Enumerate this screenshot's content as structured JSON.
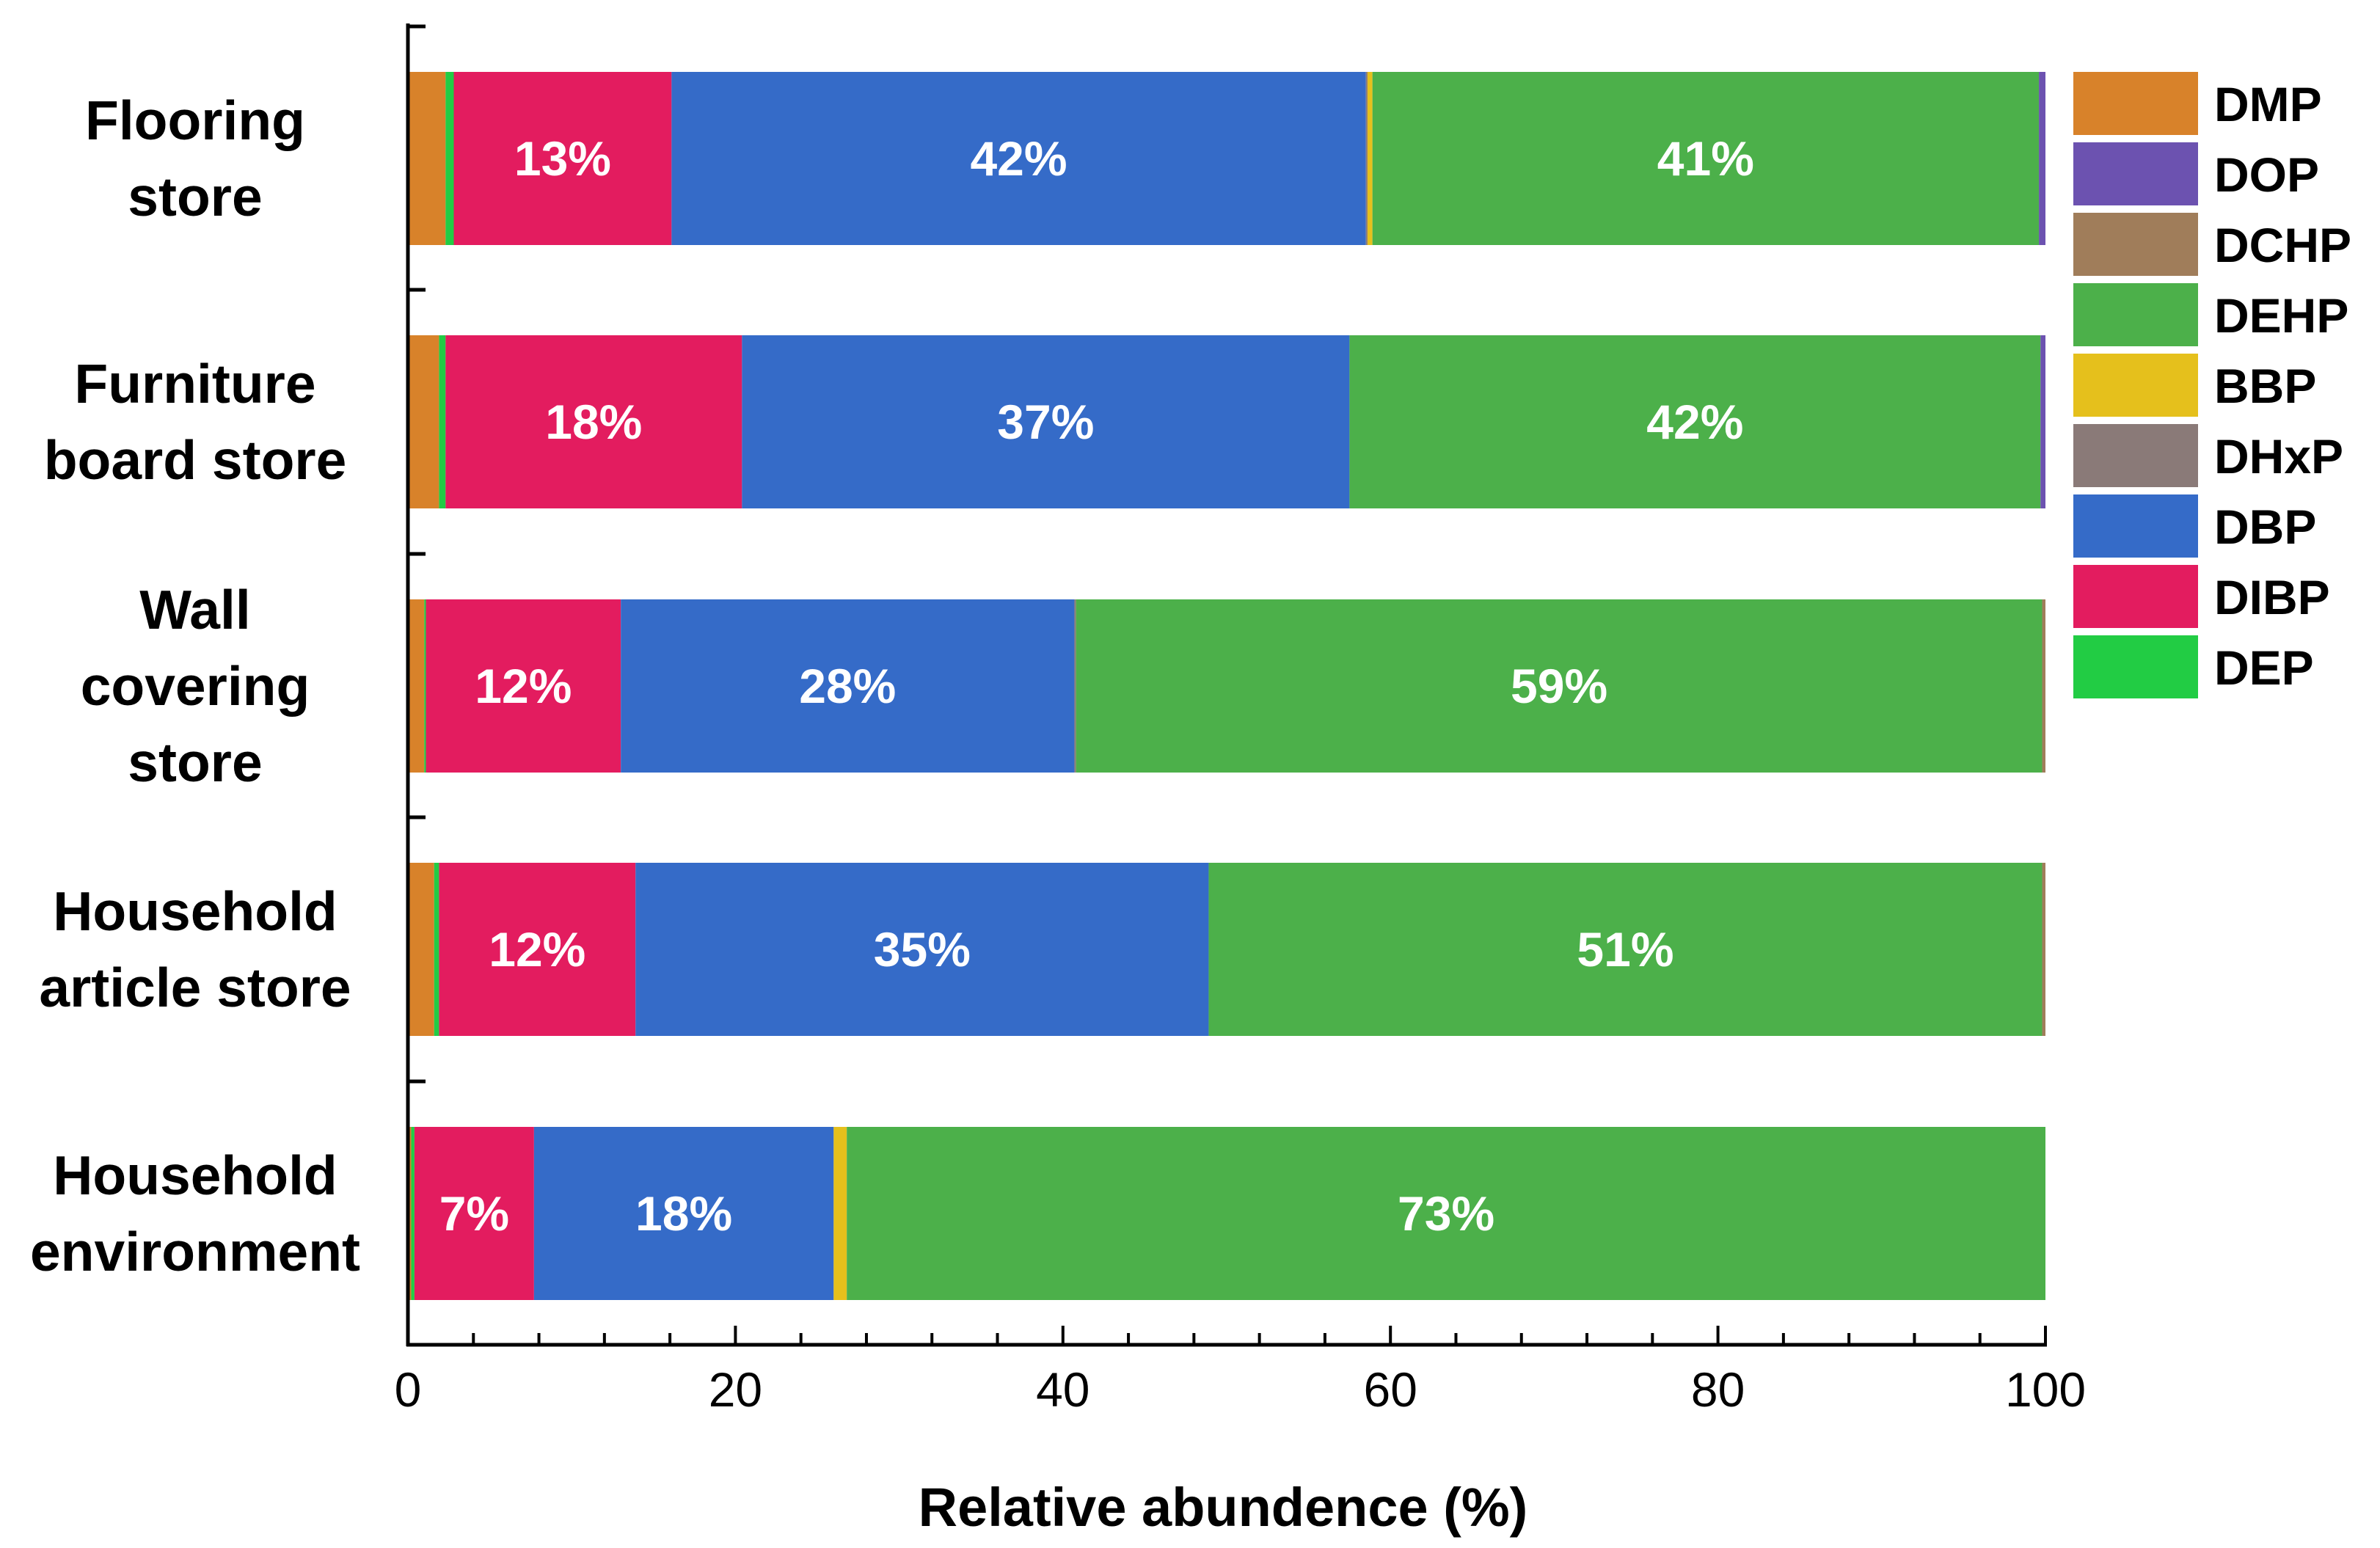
{
  "chart_data": {
    "type": "bar",
    "orientation": "horizontal",
    "stacked": true,
    "xlabel": "Relative abundence (%)",
    "xlim": [
      0,
      100
    ],
    "xticks": [
      0,
      20,
      40,
      60,
      80,
      100
    ],
    "x_minor_step": 4,
    "legend_position": "right",
    "categories": [
      [
        "Flooring",
        "store"
      ],
      [
        "Furniture",
        "board store"
      ],
      [
        "Wall",
        "covering",
        "store"
      ],
      [
        "Household",
        "article store"
      ],
      [
        "Household",
        "environment"
      ]
    ],
    "series": [
      {
        "name": "DMP",
        "color": "#d8822a",
        "values": [
          2.3,
          1.9,
          1.0,
          1.6,
          0.2
        ]
      },
      {
        "name": "DEP",
        "color": "#22cc44",
        "values": [
          0.5,
          0.4,
          0.1,
          0.3,
          0.2
        ]
      },
      {
        "name": "DIBP",
        "color": "#e31c5f",
        "values": [
          13.3,
          18.1,
          11.9,
          12.0,
          7.3
        ]
      },
      {
        "name": "DBP",
        "color": "#356bc8",
        "values": [
          42.4,
          37.1,
          27.7,
          35.0,
          18.3
        ]
      },
      {
        "name": "DHxP",
        "color": "#8a7a78",
        "values": [
          0.1,
          0.0,
          0.1,
          0.0,
          0.0
        ]
      },
      {
        "name": "BBP",
        "color": "#e5c01c",
        "values": [
          0.3,
          0.0,
          0.0,
          0.0,
          0.8
        ]
      },
      {
        "name": "DEHP",
        "color": "#4cb04a",
        "values": [
          40.7,
          42.2,
          59.0,
          50.9,
          73.2
        ]
      },
      {
        "name": "DCHP",
        "color": "#a07d5a",
        "values": [
          0.0,
          0.0,
          0.2,
          0.2,
          0.0
        ]
      },
      {
        "name": "DOP",
        "color": "#6c52b0",
        "values": [
          0.4,
          0.3,
          0.0,
          0.0,
          0.0
        ]
      }
    ],
    "data_labels": [
      [
        {
          "series": "DIBP",
          "text": "13%"
        },
        {
          "series": "DBP",
          "text": "42%"
        },
        {
          "series": "DEHP",
          "text": "41%"
        }
      ],
      [
        {
          "series": "DIBP",
          "text": "18%"
        },
        {
          "series": "DBP",
          "text": "37%"
        },
        {
          "series": "DEHP",
          "text": "42%"
        }
      ],
      [
        {
          "series": "DIBP",
          "text": "12%"
        },
        {
          "series": "DBP",
          "text": "28%"
        },
        {
          "series": "DEHP",
          "text": "59%"
        }
      ],
      [
        {
          "series": "DIBP",
          "text": "12%"
        },
        {
          "series": "DBP",
          "text": "35%"
        },
        {
          "series": "DEHP",
          "text": "51%"
        }
      ],
      [
        {
          "series": "DIBP",
          "text": "7%"
        },
        {
          "series": "DBP",
          "text": "18%"
        },
        {
          "series": "DEHP",
          "text": "73%"
        }
      ]
    ],
    "legend": [
      {
        "name": "DMP",
        "color": "#d8822a"
      },
      {
        "name": "DOP",
        "color": "#6c52b0"
      },
      {
        "name": "DCHP",
        "color": "#a07d5a"
      },
      {
        "name": "DEHP",
        "color": "#4cb04a"
      },
      {
        "name": "BBP",
        "color": "#e5c01c"
      },
      {
        "name": "DHxP",
        "color": "#8a7a78"
      },
      {
        "name": "DBP",
        "color": "#356bc8"
      },
      {
        "name": "DIBP",
        "color": "#e31c5f"
      },
      {
        "name": "DEP",
        "color": "#22cc44"
      }
    ]
  }
}
